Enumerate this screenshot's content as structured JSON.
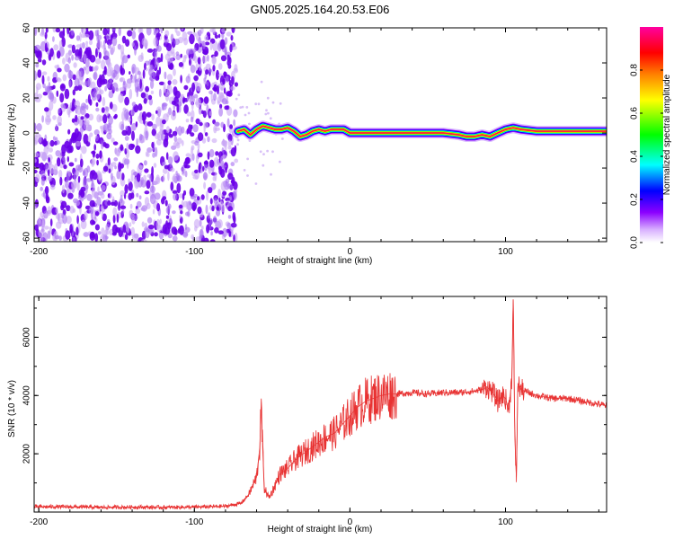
{
  "figure_title": "GN05.2025.164.20.53.E06",
  "colors": {
    "snr_line": "#e83232",
    "frame": "#000000",
    "speckle_dark": "#6a00e8",
    "speckle_light": "#c9a6f5"
  },
  "chart_data": [
    {
      "type": "heatmap",
      "name": "spectrogram",
      "title": "",
      "xlabel": "Height of straight line (km)",
      "ylabel": "Frequency (Hz)",
      "xlim": [
        -203,
        165
      ],
      "ylim": [
        -62,
        60
      ],
      "xticks": [
        -200,
        -100,
        0,
        100
      ],
      "xtick_labels": [
        "-200",
        "-100",
        "0",
        "100"
      ],
      "yticks": [
        60,
        40,
        20,
        0,
        -20,
        -40,
        -60
      ],
      "ytick_labels": [
        "60",
        "40",
        "20",
        "0",
        "-20",
        "-40",
        "-60"
      ],
      "noise_region_x": [
        -203,
        -73
      ],
      "signal_trace": {
        "x": [
          -72,
          -68,
          -64,
          -60,
          -56,
          -52,
          -48,
          -44,
          -40,
          -36,
          -32,
          -28,
          -24,
          -20,
          -16,
          -12,
          -8,
          -4,
          0,
          10,
          20,
          40,
          60,
          70,
          75,
          80,
          85,
          90,
          95,
          100,
          105,
          110,
          120,
          140,
          165
        ],
        "y": [
          1,
          2,
          -1,
          2,
          4,
          3,
          2,
          2,
          3,
          1,
          -2,
          -1,
          1,
          2,
          1,
          2,
          2,
          2,
          0,
          0,
          0,
          0,
          0,
          -1,
          -2,
          -2,
          -1,
          -2,
          0,
          2,
          3,
          2,
          1,
          1,
          1
        ]
      },
      "colorbar": {
        "label": "Normalized spectral amplitude",
        "range": [
          0,
          1
        ],
        "ticks": [
          0.0,
          0.2,
          0.4,
          0.6,
          0.8
        ],
        "tick_labels": [
          "0.0",
          "0.2",
          "0.4",
          "0.6",
          "0.8"
        ],
        "colormap": [
          "#ffffff",
          "#8b00ff",
          "#0000ff",
          "#00ffff",
          "#00ff00",
          "#ffff00",
          "#ff8000",
          "#ff0000",
          "#ff00a0"
        ]
      }
    },
    {
      "type": "line",
      "name": "snr",
      "title": "",
      "xlabel": "Height of straight line (km)",
      "ylabel": "SNR (10 * v/v)",
      "xlim": [
        -203,
        165
      ],
      "ylim": [
        0,
        7400
      ],
      "xticks": [
        -200,
        -100,
        0,
        100
      ],
      "xtick_labels": [
        "-200",
        "-100",
        "0",
        "100"
      ],
      "yticks": [
        2000,
        4000,
        6000
      ],
      "ytick_labels": [
        "2000",
        "4000",
        "6000"
      ],
      "series": [
        {
          "x": [
            -203,
            -180,
            -160,
            -140,
            -120,
            -100,
            -80,
            -70,
            -65,
            -60,
            -58,
            -57,
            -56,
            -55,
            -52,
            -50,
            -45,
            -40,
            -35,
            -30,
            -25,
            -20,
            -15,
            -10,
            -5,
            0,
            5,
            10,
            15,
            20,
            25,
            30,
            40,
            50,
            60,
            70,
            80,
            85,
            88,
            90,
            92,
            95,
            98,
            100,
            102,
            104,
            105,
            106,
            107,
            108,
            110,
            115,
            120,
            130,
            140,
            150,
            160,
            165
          ],
          "y": [
            180,
            180,
            160,
            170,
            160,
            170,
            200,
            300,
            600,
            1200,
            2200,
            3600,
            2000,
            800,
            500,
            700,
            1300,
            1500,
            1800,
            2000,
            2200,
            2400,
            2600,
            2700,
            3000,
            3300,
            3600,
            3800,
            3900,
            4000,
            4050,
            4050,
            4100,
            4050,
            4100,
            4100,
            4150,
            4200,
            4300,
            4200,
            4100,
            3800,
            4000,
            3900,
            3500,
            4500,
            7300,
            2500,
            1200,
            4400,
            4200,
            4100,
            4000,
            3900,
            3900,
            3800,
            3700,
            3650
          ]
        }
      ]
    }
  ]
}
